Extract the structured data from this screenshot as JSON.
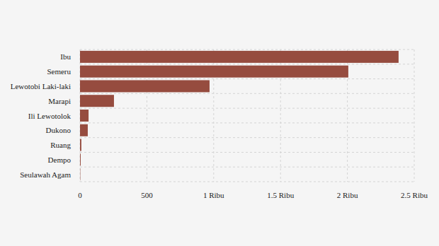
{
  "chart_data": {
    "type": "bar",
    "orientation": "horizontal",
    "categories": [
      "Ibu",
      "Semeru",
      "Lewotobi Laki-laki",
      "Marapi",
      "Ili Lewotolok",
      "Dukono",
      "Ruang",
      "Dempo",
      "Seulawah Agam"
    ],
    "values": [
      2383,
      2007,
      969,
      254,
      64,
      58,
      10,
      5,
      2
    ],
    "color": "#964c3f",
    "xlim": [
      0,
      2500
    ],
    "xticks": [
      0,
      500,
      {
        "value": 1000,
        "label": "1 Ribu"
      },
      {
        "value": 1500,
        "label": "1.5 Ribu"
      },
      {
        "value": 2000,
        "label": "2 Ribu"
      },
      {
        "value": 2500,
        "label": "2.5 Ribu"
      }
    ],
    "grid": true
  }
}
